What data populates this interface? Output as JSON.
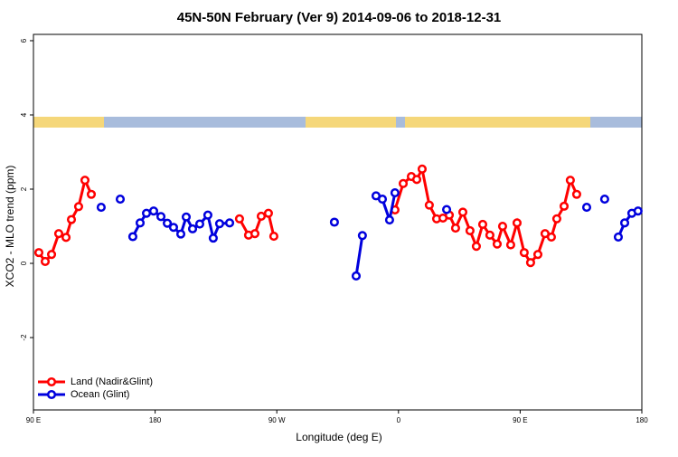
{
  "chart_data": {
    "type": "line",
    "title": "45N-50N February (Ver 9)   2014-09-06 to 2018-12-31",
    "x_label": "Longitude (deg E)",
    "y_label": "XCO2 - MLO trend (ppm)",
    "xlim": [
      90,
      540
    ],
    "xticks": [
      {
        "value": 90,
        "label": "90 E"
      },
      180,
      {
        "value": 270,
        "label": "90 W"
      },
      {
        "value": 360,
        "label": "0"
      },
      {
        "value": 450,
        "label": "90 E"
      },
      {
        "value": 540,
        "label": "180"
      }
    ],
    "ylim": [
      -3.95,
      6.17
    ],
    "yticks": [
      -2,
      0,
      2,
      4,
      6
    ],
    "legend": "bottom-left",
    "series": [
      {
        "name": "Land (Nadir&Glint)",
        "color": "#ff0000",
        "x": [
          94.0,
          98.7,
          103.4,
          108.7,
          114.1,
          118.1,
          123.4,
          128.1,
          132.8,
          null,
          242.4,
          249.1,
          253.8,
          258.5,
          263.8,
          267.8,
          null,
          357.4,
          363.5,
          369.5,
          373.5,
          377.5,
          382.8,
          388.2,
          392.9,
          397.6,
          402.2,
          407.6,
          412.9,
          417.6,
          422.3,
          427.6,
          433.0,
          437.0,
          443.0,
          447.7,
          453.0,
          457.7,
          463.1,
          468.4,
          473.1,
          477.1,
          482.5,
          487.1,
          491.8
        ],
        "values": [
          0.29,
          0.05,
          0.24,
          0.8,
          0.7,
          1.18,
          1.53,
          2.24,
          1.86,
          null,
          1.2,
          0.76,
          0.8,
          1.27,
          1.35,
          0.73,
          null,
          1.44,
          2.15,
          2.34,
          2.26,
          2.54,
          1.57,
          1.2,
          1.22,
          1.3,
          0.95,
          1.38,
          0.88,
          0.46,
          1.05,
          0.76,
          0.52,
          1.0,
          0.5,
          1.09,
          0.29,
          0.02,
          0.24,
          0.8,
          0.71,
          1.2,
          1.54,
          2.24,
          1.86
        ]
      },
      {
        "name": "Ocean (Glint)",
        "color": "#0000dd",
        "x": [
          140.1,
          null,
          154.2,
          null,
          163.5,
          168.9,
          173.6,
          178.9,
          184.3,
          189.0,
          193.6,
          199.0,
          203.0,
          207.7,
          213.0,
          219.0,
          223.0,
          227.7,
          235.1,
          null,
          312.6,
          null,
          328.7,
          333.3,
          null,
          343.4,
          348.1,
          353.4,
          357.4,
          null,
          395.6,
          null,
          499.2,
          null,
          512.5,
          null,
          522.6,
          527.3,
          532.6,
          537.2
        ],
        "values": [
          1.51,
          null,
          1.73,
          null,
          0.72,
          1.09,
          1.35,
          1.41,
          1.26,
          1.08,
          0.97,
          0.79,
          1.25,
          0.93,
          1.06,
          1.3,
          0.68,
          1.07,
          1.09,
          null,
          1.11,
          null,
          -0.34,
          0.75,
          null,
          1.82,
          1.73,
          1.17,
          1.9,
          null,
          1.45,
          null,
          1.51,
          null,
          1.73,
          null,
          0.71,
          1.09,
          1.35,
          1.41
        ]
      }
    ]
  }
}
